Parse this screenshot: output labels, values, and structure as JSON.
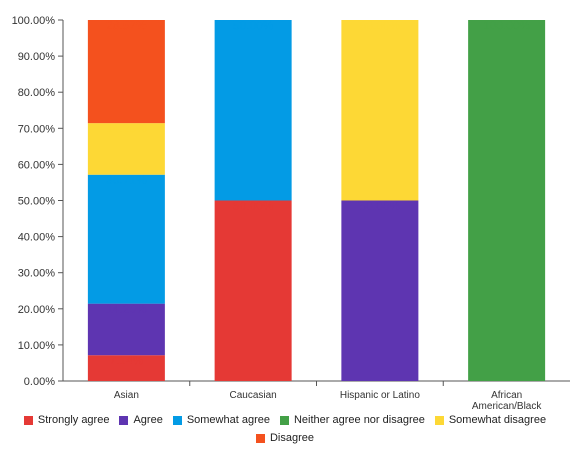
{
  "chart_data": {
    "type": "bar",
    "stacked": true,
    "categories": [
      "Asian",
      "Caucasian",
      "Hispanic or Latino",
      [
        "African",
        "American/Black"
      ]
    ],
    "ylim": [
      0,
      100
    ],
    "y_ticks": [
      "0.00%",
      "10.00%",
      "20.00%",
      "30.00%",
      "40.00%",
      "50.00%",
      "60.00%",
      "70.00%",
      "80.00%",
      "90.00%",
      "100.00%"
    ],
    "legend_position": "bottom",
    "series": [
      {
        "name": "Strongly agree",
        "color": "#e53935",
        "values": [
          7.14,
          50.0,
          0,
          0
        ],
        "labels": [
          "7.14%",
          "50.00%",
          "",
          ""
        ]
      },
      {
        "name": "Agree",
        "color": "#5e35b1",
        "values": [
          14.29,
          0,
          50.0,
          0
        ],
        "labels": [
          "14.29%",
          "",
          "50.00%",
          ""
        ]
      },
      {
        "name": "Somewhat agree",
        "color": "#039be5",
        "values": [
          35.71,
          50.0,
          0,
          0
        ],
        "labels": [
          "35.71%",
          "50.00%",
          "",
          ""
        ]
      },
      {
        "name": "Neither agree nor disagree",
        "color": "#43a047",
        "values": [
          0,
          0,
          0,
          100.0
        ],
        "labels": [
          "",
          "",
          "",
          "100.00%"
        ]
      },
      {
        "name": "Somewhat disagree",
        "color": "#fdd835",
        "values": [
          14.29,
          0,
          50.0,
          0
        ],
        "labels": [
          "14.29%",
          "",
          "50.00%",
          ""
        ]
      },
      {
        "name": "Disagree",
        "color": "#f4511e",
        "values": [
          28.57,
          0,
          0,
          0
        ],
        "labels": [
          "28.57%",
          "",
          "",
          ""
        ]
      }
    ]
  }
}
